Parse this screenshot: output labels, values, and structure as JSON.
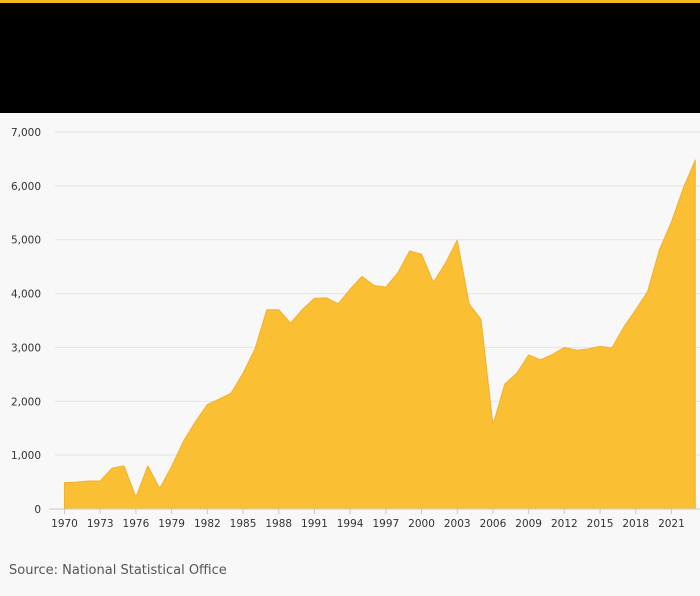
{
  "source_note": "Source: National Statistical Office",
  "colors": {
    "accent": "#f5b81c",
    "area_fill": "#fbbf33",
    "area_stroke": "#f2b02a",
    "header": "#000000",
    "gridline": "#e3e3e3",
    "background": "#f8f8f8"
  },
  "chart_data": {
    "type": "area",
    "title": "",
    "xlabel": "",
    "ylabel": "",
    "xlim": [
      1969.2,
      2023.4
    ],
    "ylim": [
      0,
      7000
    ],
    "grid": true,
    "y_ticks": [
      0,
      1000,
      2000,
      3000,
      4000,
      5000,
      6000,
      7000
    ],
    "y_tick_labels": [
      "0",
      "1,000",
      "2,000",
      "3,000",
      "4,000",
      "5,000",
      "6,000",
      "7,000"
    ],
    "x_ticks": [
      1970,
      1973,
      1976,
      1979,
      1982,
      1985,
      1988,
      1991,
      1994,
      1997,
      2000,
      2003,
      2006,
      2009,
      2012,
      2015,
      2018,
      2021
    ],
    "x_tick_labels": [
      "1970",
      "1973",
      "1976",
      "1979",
      "1982",
      "1985",
      "1988",
      "1991",
      "1994",
      "1997",
      "2000",
      "2003",
      "2006",
      "2009",
      "2012",
      "2015",
      "2018",
      "2021"
    ],
    "series": [
      {
        "x": [
          1970,
          1971,
          1972,
          1973,
          1974,
          1975,
          1976,
          1977,
          1978,
          1979,
          1980,
          1981,
          1982,
          1983,
          1984,
          1985,
          1986,
          1987,
          1988,
          1989,
          1990,
          1991,
          1992,
          1993,
          1994,
          1995,
          1996,
          1997,
          1998,
          1999,
          2000,
          2001,
          2002,
          2003,
          2004,
          2005,
          2006,
          2007,
          2008,
          2009,
          2010,
          2011,
          2012,
          2013,
          2014,
          2015,
          2016,
          2017,
          2018,
          2019,
          2020,
          2021,
          2022,
          2023
        ],
        "values": [
          490,
          500,
          520,
          520,
          760,
          800,
          220,
          800,
          380,
          790,
          1260,
          1620,
          1940,
          2040,
          2150,
          2520,
          2970,
          3700,
          3700,
          3450,
          3710,
          3910,
          3920,
          3810,
          4080,
          4320,
          4150,
          4120,
          4380,
          4790,
          4730,
          4210,
          4560,
          4990,
          3810,
          3520,
          1560,
          2320,
          2520,
          2860,
          2770,
          2870,
          3000,
          2950,
          2970,
          3020,
          2990,
          3380,
          3700,
          4040,
          4820,
          5330,
          5960,
          6480
        ]
      }
    ]
  }
}
